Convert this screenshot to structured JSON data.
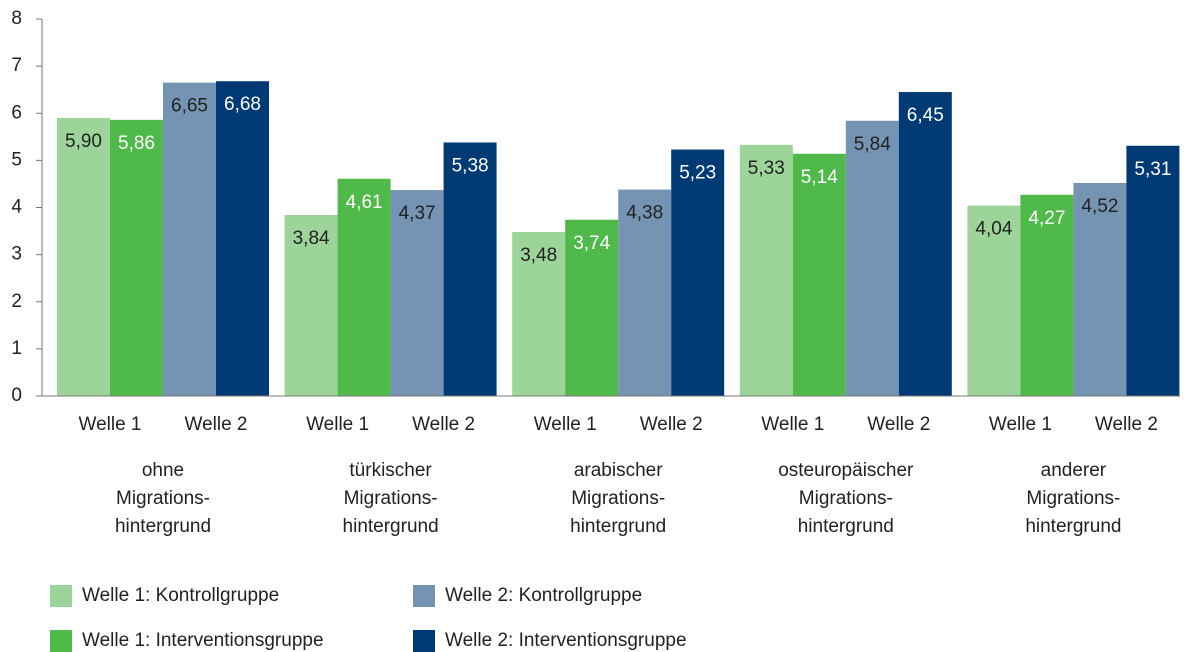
{
  "chart_data": {
    "type": "bar",
    "categories": [
      [
        "ohne",
        "Migrations-",
        "hintergrund"
      ],
      [
        "türkischer",
        "Migrations-",
        "hintergrund"
      ],
      [
        "arabischer",
        "Migrations-",
        "hintergrund"
      ],
      [
        "osteuropäischer",
        "Migrations-",
        "hintergrund"
      ],
      [
        "anderer",
        "Migrations-",
        "hintergrund"
      ]
    ],
    "subcategories": [
      "Welle 1",
      "Welle 2"
    ],
    "series": [
      {
        "name": "Welle 1: Kontrollgruppe",
        "color": "#9dd49a",
        "label_color": "#222222",
        "values": [
          5.9,
          3.84,
          3.48,
          5.33,
          4.04
        ],
        "value_labels": [
          "5,90",
          "3,84",
          "3,48",
          "5,33",
          "4,04"
        ]
      },
      {
        "name": "Welle 1: Interventionsgruppe",
        "color": "#4fba4a",
        "label_color": "#ffffff",
        "values": [
          5.86,
          4.61,
          3.74,
          5.14,
          4.27
        ],
        "value_labels": [
          "5,86",
          "4,61",
          "3,74",
          "5,14",
          "4,27"
        ]
      },
      {
        "name": "Welle 2: Kontrollgruppe",
        "color": "#7594b3",
        "label_color": "#222222",
        "values": [
          6.65,
          4.37,
          4.38,
          5.84,
          4.52
        ],
        "value_labels": [
          "6,65",
          "4,37",
          "4,38",
          "5,84",
          "4,52"
        ]
      },
      {
        "name": "Welle 2: Interventionsgruppe",
        "color": "#003a75",
        "label_color": "#ffffff",
        "values": [
          6.68,
          5.38,
          5.23,
          6.45,
          5.31
        ],
        "value_labels": [
          "6,68",
          "5,38",
          "5,23",
          "6,45",
          "5,31"
        ]
      }
    ],
    "ylim": [
      0,
      8
    ],
    "yticks": [
      0,
      1,
      2,
      3,
      4,
      5,
      6,
      7,
      8
    ],
    "grid": false
  }
}
